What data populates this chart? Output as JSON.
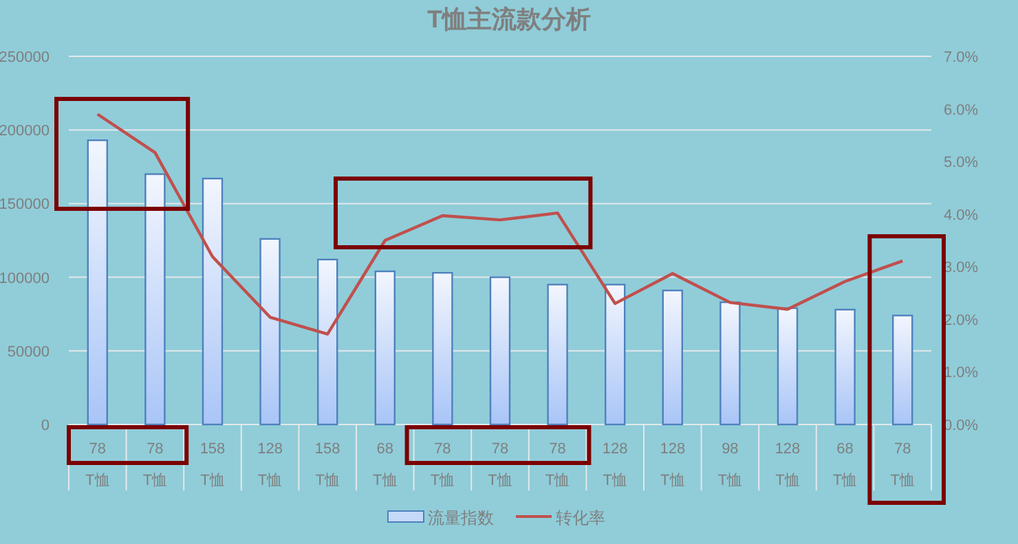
{
  "chart_data": {
    "type": "bar",
    "title": "T恤主流款分析",
    "categories": [
      "78\nT恤",
      "78\nT恤",
      "158\nT恤",
      "128\nT恤",
      "158\nT恤",
      "68\nT恤",
      "78\nT恤",
      "78\nT恤",
      "78\nT恤",
      "128\nT恤",
      "128\nT恤",
      "98\nT恤",
      "128\nT恤",
      "68\nT恤",
      "78\nT恤"
    ],
    "series": [
      {
        "name": "流量指数",
        "color": "#4f81bd",
        "values": [
          193000,
          170000,
          167000,
          126000,
          112000,
          104000,
          103000,
          100000,
          95000,
          95000,
          91000,
          83000,
          79000,
          78000,
          74000
        ]
      },
      {
        "name": "转化率",
        "type": "line",
        "axis": "y2",
        "color": "#c0504d",
        "values": [
          5.9,
          5.17,
          3.19,
          2.04,
          1.72,
          3.5,
          3.97,
          3.89,
          4.02,
          2.3,
          2.87,
          2.32,
          2.19,
          2.72,
          3.11
        ]
      }
    ],
    "ylim": [
      0,
      250000
    ],
    "yticks": [
      0,
      50000,
      100000,
      150000,
      200000,
      250000
    ],
    "y2lim": [
      0,
      7
    ],
    "y2ticks": [
      {
        "value": 0,
        "label": "0.0%"
      },
      {
        "value": 1,
        "label": "1.0%"
      },
      {
        "value": 2,
        "label": "2.0%"
      },
      {
        "value": 3,
        "label": "3.0%"
      },
      {
        "value": 4,
        "label": "4.0%"
      },
      {
        "value": 5,
        "label": "5.0%"
      },
      {
        "value": 6,
        "label": "6.0%"
      },
      {
        "value": 7,
        "label": "7.0%"
      }
    ],
    "grid": "y",
    "legend": "bottom"
  }
}
